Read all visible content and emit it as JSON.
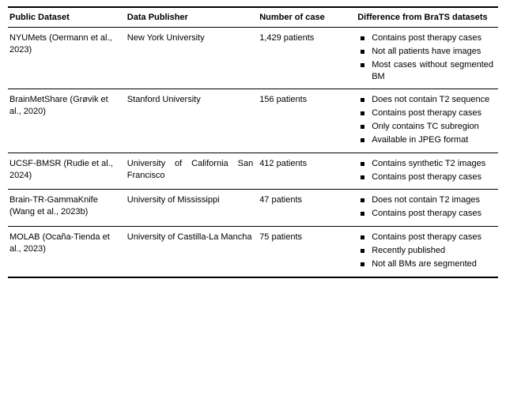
{
  "table": {
    "columns": [
      {
        "label": "Public Dataset"
      },
      {
        "label": "Data Publisher"
      },
      {
        "label": "Number of case"
      },
      {
        "label": "Difference from BraTS datasets"
      }
    ],
    "rows": [
      {
        "dataset": "NYUMets (Oermann et al., 2023)",
        "publisher": "New York University",
        "cases": "1,429 patients",
        "diffs": [
          "Contains post therapy cases",
          "Not all patients have images",
          "Most cases without segmented BM"
        ]
      },
      {
        "dataset": "BrainMetShare (Grøvik et al., 2020)",
        "publisher": "Stanford University",
        "cases": "156 patients",
        "diffs": [
          "Does not contain T2 sequence",
          "Contains post therapy cases",
          "Only contains TC subregion",
          "Available in JPEG format"
        ]
      },
      {
        "dataset": "UCSF-BMSR (Rudie et al., 2024)",
        "publisher": "University of California San Francisco",
        "cases": "412 patients",
        "diffs": [
          "Contains synthetic T2 images",
          "Contains post therapy cases"
        ]
      },
      {
        "dataset": "Brain-TR-GammaKnife (Wang et al., 2023b)",
        "publisher": "University of Mississippi",
        "cases": "47 patients",
        "diffs": [
          "Does not contain T2 images",
          "Contains post therapy cases"
        ]
      },
      {
        "dataset": "MOLAB (Ocaña-Tienda et al., 2023)",
        "publisher": "University of Castilla-La Mancha",
        "cases": "75 patients",
        "diffs": [
          "Contains post therapy cases",
          "Recently published",
          "Not all BMs are segmented"
        ]
      }
    ]
  }
}
